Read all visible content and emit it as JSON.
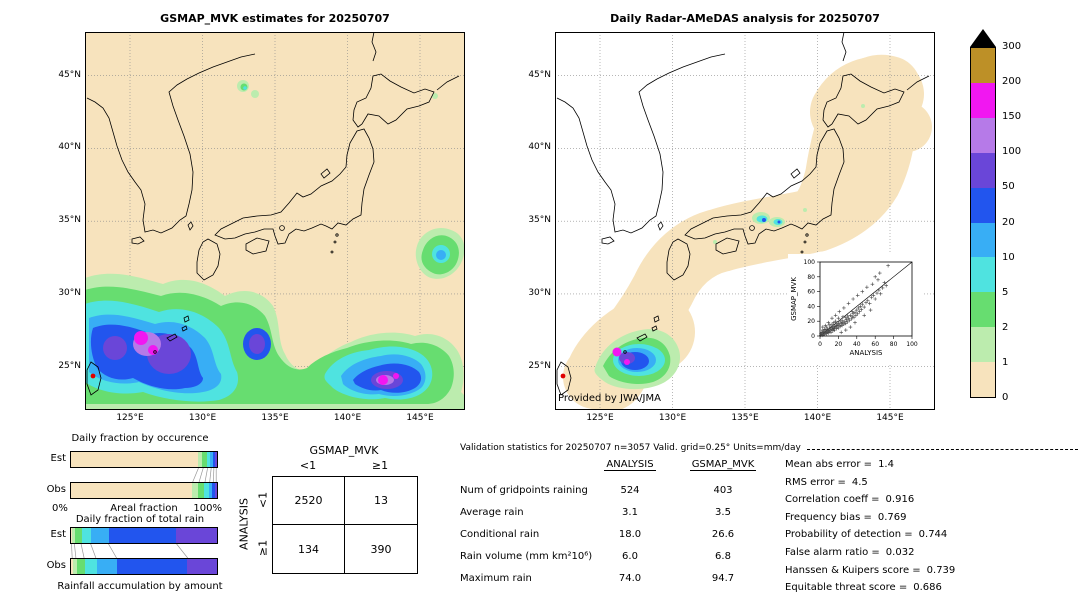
{
  "credit": "Provided by JWA/JMA",
  "colorbar": {
    "units": "mm/day",
    "levels": [
      "300",
      "200",
      "150",
      "100",
      "50",
      "20",
      "10",
      "5",
      "2",
      "1",
      "0"
    ],
    "colors": [
      "#bd9027",
      "#f117f1",
      "#b67ae8",
      "#6a46d8",
      "#2255ee",
      "#38aef5",
      "#4fe3e0",
      "#67dd70",
      "#bcecae",
      "#f7e3bd"
    ],
    "overflow_color": "#000000"
  },
  "chart_data": [
    {
      "type": "heatmap",
      "title": "GSMAP_MVK estimates for 20250707",
      "x_ticks": [
        "125°E",
        "130°E",
        "135°E",
        "140°E",
        "145°E"
      ],
      "y_ticks": [
        "45°N",
        "40°N",
        "35°N",
        "30°N",
        "25°N"
      ],
      "units": "mm/day",
      "levels": [
        0,
        1,
        2,
        5,
        10,
        20,
        50,
        100,
        150,
        200,
        300
      ],
      "note": "Satellite precipitation estimate; broad rain band south of 30N with magenta cores >150 mm/day"
    },
    {
      "type": "heatmap",
      "title": "Daily Radar-AMeDAS analysis for 20250707",
      "x_ticks": [
        "125°E",
        "130°E",
        "135°E",
        "140°E",
        "145°E"
      ],
      "y_ticks": [
        "45°N",
        "40°N",
        "35°N",
        "30°N",
        "25°N"
      ],
      "units": "mm/day",
      "levels": [
        0,
        1,
        2,
        5,
        10,
        20,
        50,
        100,
        150,
        200,
        300
      ],
      "note": "Radar-gauge analysis inside radar coverage swath; heavy rain near Okinawa, light rain cells over central Japan"
    },
    {
      "type": "scatter",
      "xlabel": "ANALYSIS",
      "ylabel": "GSMAP_MVK",
      "xlim": [
        0,
        100
      ],
      "ylim": [
        0,
        100
      ],
      "ticks": [
        0,
        20,
        40,
        60,
        80,
        100
      ],
      "ref_line": "y=x",
      "points": [
        [
          1,
          1
        ],
        [
          1,
          3
        ],
        [
          2,
          2
        ],
        [
          2,
          5
        ],
        [
          3,
          1
        ],
        [
          3,
          4
        ],
        [
          3,
          8
        ],
        [
          3,
          12
        ],
        [
          4,
          3
        ],
        [
          4,
          6
        ],
        [
          5,
          2
        ],
        [
          5,
          5
        ],
        [
          5,
          9
        ],
        [
          6,
          4
        ],
        [
          6,
          8
        ],
        [
          6,
          14
        ],
        [
          7,
          3
        ],
        [
          7,
          6
        ],
        [
          7,
          12
        ],
        [
          8,
          5
        ],
        [
          8,
          9
        ],
        [
          9,
          4
        ],
        [
          9,
          7
        ],
        [
          9,
          18
        ],
        [
          10,
          6
        ],
        [
          10,
          10
        ],
        [
          10,
          15
        ],
        [
          11,
          8
        ],
        [
          12,
          5
        ],
        [
          12,
          12
        ],
        [
          13,
          9
        ],
        [
          13,
          16
        ],
        [
          13,
          24
        ],
        [
          14,
          7
        ],
        [
          14,
          11
        ],
        [
          15,
          10
        ],
        [
          15,
          18
        ],
        [
          16,
          8
        ],
        [
          16,
          13
        ],
        [
          17,
          12
        ],
        [
          17,
          20
        ],
        [
          17,
          28
        ],
        [
          18,
          10
        ],
        [
          18,
          15
        ],
        [
          19,
          14
        ],
        [
          20,
          11
        ],
        [
          20,
          17
        ],
        [
          20,
          24
        ],
        [
          21,
          15
        ],
        [
          21,
          33
        ],
        [
          22,
          13
        ],
        [
          22,
          19
        ],
        [
          23,
          5
        ],
        [
          23,
          17
        ],
        [
          24,
          14
        ],
        [
          24,
          21
        ],
        [
          25,
          18
        ],
        [
          25,
          26
        ],
        [
          26,
          16
        ],
        [
          26,
          38
        ],
        [
          27,
          20
        ],
        [
          28,
          8
        ],
        [
          28,
          17
        ],
        [
          28,
          25
        ],
        [
          29,
          22
        ],
        [
          30,
          19
        ],
        [
          30,
          27
        ],
        [
          31,
          24
        ],
        [
          31,
          44
        ],
        [
          32,
          21
        ],
        [
          33,
          12
        ],
        [
          33,
          28
        ],
        [
          34,
          23
        ],
        [
          35,
          26
        ],
        [
          35,
          33
        ],
        [
          36,
          30
        ],
        [
          36,
          50
        ],
        [
          37,
          25
        ],
        [
          38,
          18
        ],
        [
          38,
          32
        ],
        [
          39,
          28
        ],
        [
          40,
          35
        ],
        [
          41,
          30
        ],
        [
          41,
          55
        ],
        [
          42,
          38
        ],
        [
          43,
          33
        ],
        [
          44,
          40
        ],
        [
          45,
          36
        ],
        [
          46,
          43
        ],
        [
          46,
          60
        ],
        [
          48,
          28
        ],
        [
          48,
          39
        ],
        [
          50,
          45
        ],
        [
          51,
          66
        ],
        [
          52,
          48
        ],
        [
          54,
          44
        ],
        [
          55,
          35
        ],
        [
          56,
          52
        ],
        [
          57,
          70
        ],
        [
          58,
          55
        ],
        [
          60,
          50
        ],
        [
          60,
          80
        ],
        [
          62,
          58
        ],
        [
          63,
          76
        ],
        [
          64,
          62
        ],
        [
          65,
          85
        ],
        [
          66,
          57
        ],
        [
          68,
          65
        ],
        [
          70,
          72
        ],
        [
          72,
          68
        ],
        [
          74,
          95
        ]
      ]
    },
    {
      "type": "bar",
      "stacked": true,
      "orientation": "horizontal",
      "title": "Daily fraction by occurence",
      "categories": [
        "Est",
        "Obs"
      ],
      "xlabel": "Areal fraction",
      "x_ticks": [
        "0%",
        "100%"
      ],
      "bins_mm_per_day": [
        "0-1",
        "1-2",
        "2-5",
        "5-10",
        "10-20",
        "20-50",
        "50-100"
      ],
      "colors": [
        "#f7e3bd",
        "#bcecae",
        "#67dd70",
        "#4fe3e0",
        "#38aef5",
        "#2255ee",
        "#6a46d8"
      ],
      "values_pct": [
        [
          86.8,
          3.2,
          3.0,
          2.4,
          1.8,
          1.6,
          1.2
        ],
        [
          82.9,
          4.3,
          4.0,
          3.2,
          2.4,
          2.0,
          1.2
        ]
      ]
    },
    {
      "type": "bar",
      "stacked": true,
      "orientation": "horizontal",
      "title": "Daily fraction of total rain",
      "caption": "Rainfall accumulation by amount",
      "categories": [
        "Est",
        "Obs"
      ],
      "bins_mm_per_day": [
        "0-1",
        "1-2",
        "2-5",
        "5-10",
        "10-20",
        "20-50",
        "50-100"
      ],
      "colors": [
        "#f7e3bd",
        "#bcecae",
        "#67dd70",
        "#4fe3e0",
        "#38aef5",
        "#2255ee",
        "#6a46d8"
      ],
      "values_pct": [
        [
          1.0,
          2.0,
          4.5,
          6.5,
          12.0,
          46.0,
          28.0
        ],
        [
          1.5,
          2.5,
          5.5,
          8.0,
          14.0,
          48.0,
          20.5
        ]
      ]
    },
    {
      "type": "table",
      "col_axis": "GSMAP_MVK",
      "row_axis": "ANALYSIS",
      "col_labels": [
        "<1",
        "≥1"
      ],
      "row_labels": [
        "<1",
        "≥1"
      ],
      "values": [
        [
          "2520",
          "13"
        ],
        [
          "134",
          "390"
        ]
      ]
    },
    {
      "type": "table",
      "title": "Validation statistics for 20250707  n=3057 Valid. grid=0.25° Units=mm/day",
      "columns": [
        "",
        "ANALYSIS",
        "GSMAP_MVK"
      ],
      "rows": [
        [
          "Num of gridpoints raining",
          "524",
          "403"
        ],
        [
          "Average rain",
          "3.1",
          "3.5"
        ],
        [
          "Conditional rain",
          "18.0",
          "26.6"
        ],
        [
          "Rain volume (mm km²10⁶)",
          "6.0",
          "6.8"
        ],
        [
          "Maximum rain",
          "74.0",
          "94.7"
        ]
      ]
    },
    {
      "type": "table",
      "rows": [
        [
          "Mean abs error =",
          "1.4"
        ],
        [
          "RMS error =",
          "4.5"
        ],
        [
          "Correlation coeff =",
          "0.916"
        ],
        [
          "Frequency bias =",
          "0.769"
        ],
        [
          "Probability of detection =",
          "0.744"
        ],
        [
          "False alarm ratio =",
          "0.032"
        ],
        [
          "Hanssen & Kuipers score =",
          "0.739"
        ],
        [
          "Equitable threat score =",
          "0.686"
        ]
      ]
    }
  ]
}
